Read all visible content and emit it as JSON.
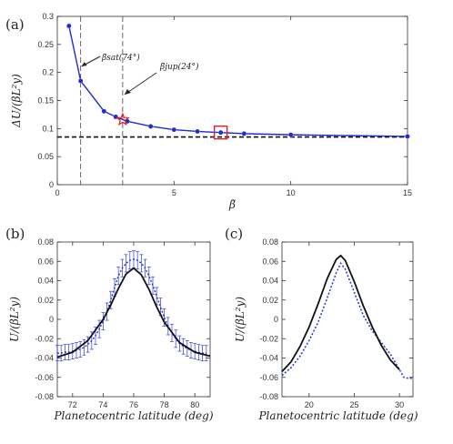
{
  "colors": {
    "blue": "#1f2bd6",
    "black": "#111111",
    "red": "#e02020",
    "dashed_blue": "#2233dd"
  },
  "panels": {
    "a": "(a)",
    "b": "(b)",
    "c": "(c)"
  },
  "chart_data": [
    {
      "type": "line",
      "panel": "(a)",
      "xlabel": "β̃",
      "ylabel": "ΔU/(βL²y)",
      "xlim": [
        0,
        15
      ],
      "ylim": [
        0,
        0.3
      ],
      "xticks": [
        "0",
        "5",
        "10",
        "15"
      ],
      "yticks": [
        "0",
        "0.05",
        "0.1",
        "0.15",
        "0.2",
        "0.25",
        "0.3"
      ],
      "grid": false,
      "series": [
        {
          "style": "blue line with circle markers",
          "x": [
            0.5,
            1,
            2,
            2.5,
            3,
            4,
            5,
            6,
            7,
            8,
            10,
            15
          ],
          "y": [
            0.283,
            0.185,
            0.131,
            0.121,
            0.113,
            0.104,
            0.098,
            0.095,
            0.093,
            0.091,
            0.089,
            0.086
          ]
        }
      ],
      "reference_line": {
        "style": "black dashed horizontal",
        "y": 0.085
      },
      "vertical_lines": [
        {
          "x": 1.0,
          "label": "β̃sat(74°)"
        },
        {
          "x": 2.8,
          "label": "β̃jup(24°)"
        }
      ],
      "markers": [
        {
          "shape": "red star",
          "x": 2.8,
          "y": 0.116
        },
        {
          "shape": "red square",
          "x": 7,
          "y": 0.093
        }
      ]
    },
    {
      "type": "line",
      "panel": "(b)",
      "xlabel": "Planetocentric latitude (deg)",
      "ylabel": "U/(βL²y)",
      "xlim": [
        71,
        81
      ],
      "ylim": [
        -0.08,
        0.08
      ],
      "xticks": [
        "72",
        "74",
        "76",
        "78",
        "80"
      ],
      "yticks": [
        "-0.08",
        "-0.06",
        "-0.04",
        "-0.02",
        "0",
        "0.02",
        "0.04",
        "0.06",
        "0.08"
      ],
      "series": [
        {
          "style": "blue dotted with error bars",
          "x": [
            71.0,
            71.25,
            71.5,
            71.75,
            72.0,
            72.25,
            72.5,
            72.75,
            73.0,
            73.25,
            73.5,
            73.75,
            74.0,
            74.25,
            74.5,
            74.75,
            75.0,
            75.25,
            75.5,
            75.75,
            76.0,
            76.25,
            76.5,
            76.75,
            77.0,
            77.25,
            77.5,
            77.75,
            78.0,
            78.25,
            78.5,
            78.75,
            79.0,
            79.25,
            79.5,
            79.75,
            80.0,
            80.25,
            80.5,
            80.75
          ],
          "y": [
            -0.035,
            -0.035,
            -0.034,
            -0.034,
            -0.033,
            -0.032,
            -0.031,
            -0.029,
            -0.026,
            -0.022,
            -0.017,
            -0.01,
            -0.002,
            0.008,
            0.02,
            0.033,
            0.045,
            0.053,
            0.058,
            0.061,
            0.062,
            0.061,
            0.058,
            0.053,
            0.045,
            0.035,
            0.024,
            0.013,
            0.002,
            -0.007,
            -0.014,
            -0.02,
            -0.025,
            -0.028,
            -0.03,
            -0.032,
            -0.033,
            -0.034,
            -0.035,
            -0.035
          ],
          "err": [
            0.008,
            0.008,
            0.008,
            0.008,
            0.008,
            0.008,
            0.008,
            0.008,
            0.008,
            0.009,
            0.009,
            0.009,
            0.009,
            0.009,
            0.009,
            0.009,
            0.009,
            0.009,
            0.009,
            0.009,
            0.009,
            0.009,
            0.009,
            0.009,
            0.009,
            0.009,
            0.009,
            0.009,
            0.009,
            0.009,
            0.009,
            0.009,
            0.008,
            0.008,
            0.008,
            0.008,
            0.008,
            0.008,
            0.008,
            0.008
          ]
        },
        {
          "style": "black solid",
          "x": [
            71,
            72,
            73,
            74,
            74.5,
            75,
            75.5,
            76,
            76.5,
            77,
            77.5,
            78,
            79,
            80,
            81
          ],
          "y": [
            -0.039,
            -0.034,
            -0.022,
            0.0,
            0.015,
            0.032,
            0.047,
            0.053,
            0.046,
            0.031,
            0.013,
            -0.003,
            -0.024,
            -0.034,
            -0.038
          ]
        }
      ]
    },
    {
      "type": "line",
      "panel": "(c)",
      "xlabel": "Planetocentric latitude (deg)",
      "ylabel": "U/(βL²y)",
      "xlim": [
        17,
        31.5
      ],
      "ylim": [
        -0.08,
        0.08
      ],
      "xticks": [
        "20",
        "25",
        "30"
      ],
      "yticks": [
        "-0.08",
        "-0.06",
        "-0.04",
        "-0.02",
        "0",
        "0.02",
        "0.04",
        "0.06",
        "0.08"
      ],
      "series": [
        {
          "style": "blue dotted",
          "x": [
            17,
            18,
            19,
            20,
            21,
            22,
            23,
            23.5,
            24,
            25,
            26,
            27,
            28,
            29,
            30,
            30.5,
            31,
            31.5
          ],
          "y": [
            -0.058,
            -0.05,
            -0.038,
            -0.022,
            -0.003,
            0.022,
            0.048,
            0.058,
            0.052,
            0.028,
            0.004,
            -0.012,
            -0.024,
            -0.036,
            -0.052,
            -0.06,
            -0.061,
            -0.061
          ]
        },
        {
          "style": "black solid",
          "x": [
            17,
            18,
            19,
            20,
            21,
            22,
            23,
            23.5,
            24,
            25,
            26,
            27,
            28,
            29,
            30
          ],
          "y": [
            -0.054,
            -0.044,
            -0.028,
            -0.008,
            0.016,
            0.042,
            0.062,
            0.066,
            0.061,
            0.039,
            0.014,
            -0.008,
            -0.027,
            -0.042,
            -0.052
          ]
        }
      ]
    }
  ]
}
